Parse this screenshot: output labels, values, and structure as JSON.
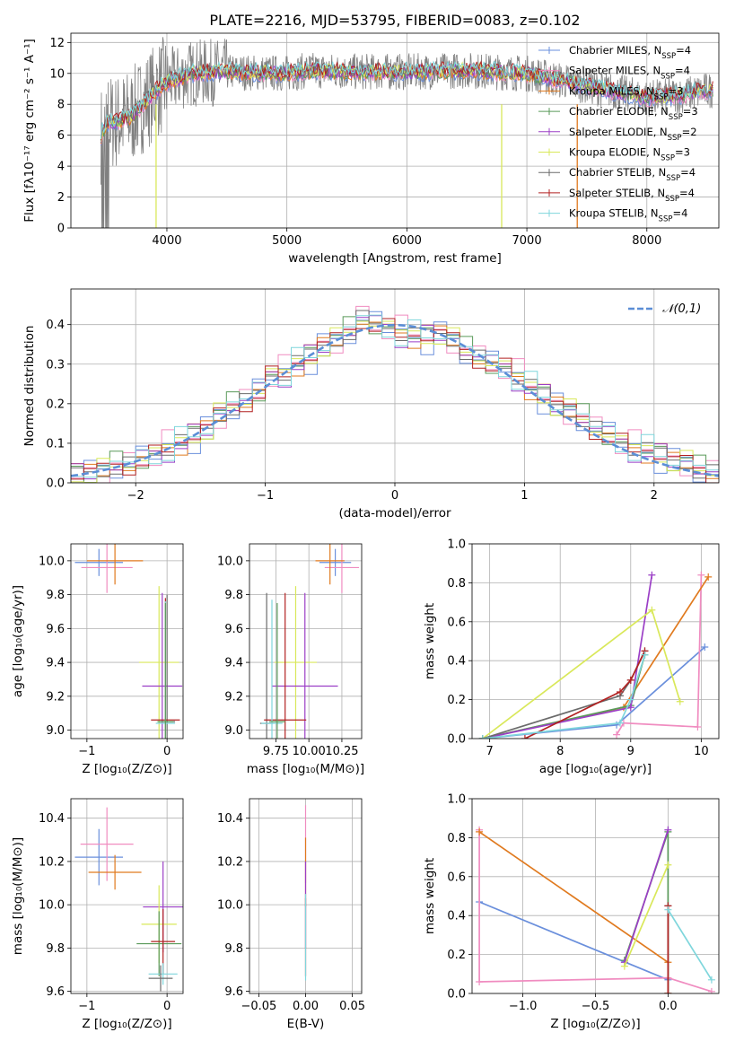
{
  "figure_title": "PLATE=2216, MJD=53795, FIBERID=0083, z=0.102",
  "colors": {
    "chabrier_miles": "#6a8fdc",
    "salpeter_miles": "#f08cc0",
    "kroupa_miles": "#e07a1f",
    "chabrier_elodie": "#5a9a5a",
    "salpeter_elodie": "#9b3fc6",
    "kroupa_elodie": "#d9e85a",
    "chabrier_stelib": "#6b6b6b",
    "salpeter_stelib": "#b22222",
    "kroupa_stelib": "#7fd6dc"
  },
  "chart_data": [
    {
      "id": "spectrum",
      "type": "line",
      "xlabel": "wavelength [Angstrom, rest frame]",
      "ylabel": "Flux [fλ10⁻¹⁷ erg cm⁻² s⁻¹ A⁻¹]",
      "xlim": [
        3200,
        8600
      ],
      "ylim": [
        0,
        12.6
      ],
      "xticks": [
        4000,
        5000,
        6000,
        7000,
        8000
      ],
      "yticks": [
        0,
        2,
        4,
        6,
        8,
        10,
        12
      ],
      "grid": true,
      "legend_position": "top-right",
      "legend": [
        {
          "label": "Chabrier MILES, N",
          "sub": "SSP",
          "value": "=4",
          "color_key": "chabrier_miles"
        },
        {
          "label": "Salpeter MILES, N",
          "sub": "SSP",
          "value": "=4",
          "color_key": "salpeter_miles"
        },
        {
          "label": "Kroupa MILES, N",
          "sub": "SSP",
          "value": "=3",
          "color_key": "kroupa_miles"
        },
        {
          "label": "Chabrier ELODIE, N",
          "sub": "SSP",
          "value": "=3",
          "color_key": "chabrier_elodie"
        },
        {
          "label": "Salpeter ELODIE, N",
          "sub": "SSP",
          "value": "=2",
          "color_key": "salpeter_elodie"
        },
        {
          "label": "Kroupa ELODIE, N",
          "sub": "SSP",
          "value": "=3",
          "color_key": "kroupa_elodie"
        },
        {
          "label": "Chabrier STELIB, N",
          "sub": "SSP",
          "value": "=4",
          "color_key": "chabrier_stelib"
        },
        {
          "label": "Salpeter STELIB, N",
          "sub": "SSP",
          "value": "=4",
          "color_key": "salpeter_stelib"
        },
        {
          "label": "Kroupa STELIB, N",
          "sub": "SSP",
          "value": "=4",
          "color_key": "kroupa_stelib"
        }
      ],
      "observed_envelope": [
        [
          3450,
          6.0
        ],
        [
          3500,
          6.8
        ],
        [
          3600,
          6.9
        ],
        [
          3700,
          7.2
        ],
        [
          3800,
          8.0
        ],
        [
          3900,
          8.8
        ],
        [
          4000,
          9.4
        ],
        [
          4200,
          10.0
        ],
        [
          4500,
          10.1
        ],
        [
          5000,
          10.0
        ],
        [
          5200,
          10.2
        ],
        [
          5500,
          10.1
        ],
        [
          6000,
          10.1
        ],
        [
          6500,
          10.2
        ],
        [
          7000,
          10.0
        ],
        [
          7500,
          9.2
        ],
        [
          8000,
          8.4
        ],
        [
          8300,
          8.6
        ],
        [
          8500,
          8.9
        ]
      ]
    },
    {
      "id": "residuals",
      "type": "step",
      "xlabel": "(data-model)/error",
      "ylabel": "Normed distribution",
      "xlim": [
        -2.5,
        2.5
      ],
      "ylim": [
        0,
        0.49
      ],
      "xticks": [
        -2,
        -1,
        0,
        1,
        2
      ],
      "yticks": [
        0.0,
        0.1,
        0.2,
        0.3,
        0.4
      ],
      "legend_position": "top-right",
      "legend": [
        {
          "label": "𝒩(0,1)",
          "style": "dashed",
          "color": "#5b8ed6"
        }
      ],
      "bin_width": 0.1,
      "histogram_centers": [
        -2.45,
        -2.35,
        -2.25,
        -2.15,
        -2.05,
        -1.95,
        -1.85,
        -1.75,
        -1.65,
        -1.55,
        -1.45,
        -1.35,
        -1.25,
        -1.15,
        -1.05,
        -0.95,
        -0.85,
        -0.75,
        -0.65,
        -0.55,
        -0.45,
        -0.35,
        -0.25,
        -0.15,
        -0.05,
        0.05,
        0.15,
        0.25,
        0.35,
        0.45,
        0.55,
        0.65,
        0.75,
        0.85,
        0.95,
        1.05,
        1.15,
        1.25,
        1.35,
        1.45,
        1.55,
        1.65,
        1.75,
        1.85,
        1.95,
        2.05,
        2.15,
        2.25,
        2.35,
        2.45
      ],
      "histogram_values": [
        0.02,
        0.03,
        0.03,
        0.04,
        0.05,
        0.06,
        0.07,
        0.09,
        0.1,
        0.12,
        0.14,
        0.17,
        0.19,
        0.21,
        0.23,
        0.27,
        0.28,
        0.3,
        0.32,
        0.35,
        0.36,
        0.38,
        0.42,
        0.4,
        0.39,
        0.38,
        0.37,
        0.37,
        0.38,
        0.36,
        0.33,
        0.32,
        0.3,
        0.29,
        0.27,
        0.24,
        0.22,
        0.2,
        0.18,
        0.16,
        0.14,
        0.12,
        0.1,
        0.09,
        0.08,
        0.07,
        0.06,
        0.05,
        0.03,
        0.03
      ],
      "series_offsets": [
        -0.022,
        0.02,
        -0.012,
        0.028,
        -0.026,
        0.014,
        0.006,
        -0.018,
        0.024
      ]
    },
    {
      "id": "age_vs_Z",
      "type": "errorbar",
      "xlabel": "Z [log₁₀(Z/Z⊙)]",
      "ylabel": "age  [log₁₀(age/yr)]",
      "xlim": [
        -1.2,
        0.2
      ],
      "ylim": [
        8.95,
        10.1
      ],
      "xticks": [
        -1,
        0
      ],
      "yticks": [
        9.0,
        9.2,
        9.4,
        9.6,
        9.8,
        10.0
      ],
      "points": [
        {
          "key": "chabrier_miles",
          "x": -0.85,
          "y": 9.99,
          "xerr": 0.3,
          "yerr": 0.08
        },
        {
          "key": "salpeter_miles",
          "x": -0.75,
          "y": 9.96,
          "xerr": 0.32,
          "yerr": 0.15
        },
        {
          "key": "kroupa_miles",
          "x": -0.65,
          "y": 10.0,
          "xerr": 0.35,
          "yerr": 0.14
        },
        {
          "key": "kroupa_elodie",
          "x": -0.1,
          "y": 9.4,
          "xerr": 0.25,
          "yerr": 0.45
        },
        {
          "key": "salpeter_elodie",
          "x": -0.06,
          "y": 9.26,
          "xerr": 0.25,
          "yerr": 0.55
        },
        {
          "key": "chabrier_stelib",
          "x": 0.0,
          "y": 9.05,
          "xerr": 0.1,
          "yerr": 0.75
        },
        {
          "key": "salpeter_stelib",
          "x": -0.02,
          "y": 9.06,
          "xerr": 0.18,
          "yerr": 0.72
        },
        {
          "key": "kroupa_stelib",
          "x": -0.02,
          "y": 9.04,
          "xerr": 0.12,
          "yerr": 0.72
        },
        {
          "key": "chabrier_elodie",
          "x": -0.02,
          "y": 9.05,
          "xerr": 0.1,
          "yerr": 0.7
        }
      ]
    },
    {
      "id": "age_vs_mass",
      "type": "errorbar",
      "xlabel": "mass [log₁₀(M/M⊙)]",
      "ylabel": "",
      "xlim": [
        9.55,
        10.4
      ],
      "ylim": [
        8.95,
        10.1
      ],
      "xticks": [
        9.75,
        10.0,
        10.25
      ],
      "xtick_labels": [
        "9.75",
        "10.00",
        "10.25"
      ],
      "yticks": [
        9.0,
        9.2,
        9.4,
        9.6,
        9.8,
        10.0
      ],
      "points": [
        {
          "key": "chabrier_miles",
          "x": 10.2,
          "y": 9.99,
          "xerr": 0.12,
          "yerr": 0.08
        },
        {
          "key": "salpeter_miles",
          "x": 10.25,
          "y": 9.96,
          "xerr": 0.13,
          "yerr": 0.15
        },
        {
          "key": "kroupa_miles",
          "x": 10.16,
          "y": 10.0,
          "xerr": 0.11,
          "yerr": 0.14
        },
        {
          "key": "kroupa_elodie",
          "x": 9.9,
          "y": 9.4,
          "xerr": 0.16,
          "yerr": 0.45
        },
        {
          "key": "salpeter_elodie",
          "x": 9.97,
          "y": 9.26,
          "xerr": 0.25,
          "yerr": 0.55
        },
        {
          "key": "chabrier_stelib",
          "x": 9.68,
          "y": 9.04,
          "xerr": 0.05,
          "yerr": 0.77
        },
        {
          "key": "salpeter_stelib",
          "x": 9.82,
          "y": 9.06,
          "xerr": 0.16,
          "yerr": 0.75
        },
        {
          "key": "kroupa_stelib",
          "x": 9.72,
          "y": 9.04,
          "xerr": 0.08,
          "yerr": 0.73
        },
        {
          "key": "chabrier_elodie",
          "x": 9.76,
          "y": 9.05,
          "xerr": 0.06,
          "yerr": 0.7
        }
      ]
    },
    {
      "id": "weight_vs_age",
      "type": "line",
      "xlabel": "age  [log₁₀(age/yr)]",
      "ylabel": "mass weight",
      "xlim": [
        6.75,
        10.25
      ],
      "ylim": [
        0,
        1.0
      ],
      "xticks": [
        7,
        8,
        9,
        10
      ],
      "yticks": [
        0.0,
        0.2,
        0.4,
        0.6,
        0.8,
        1.0
      ],
      "series": [
        {
          "key": "chabrier_miles",
          "x": [
            6.9,
            8.8,
            10.05
          ],
          "y": [
            0.0,
            0.07,
            0.47
          ]
        },
        {
          "key": "salpeter_miles",
          "x": [
            8.8,
            8.9,
            9.95,
            10.0
          ],
          "y": [
            0.02,
            0.08,
            0.06,
            0.84
          ]
        },
        {
          "key": "kroupa_miles",
          "x": [
            6.9,
            8.9,
            10.1
          ],
          "y": [
            0.0,
            0.16,
            0.83
          ]
        },
        {
          "key": "chabrier_elodie",
          "x": [
            6.9,
            9.0,
            9.2
          ],
          "y": [
            0.0,
            0.17,
            0.43
          ]
        },
        {
          "key": "salpeter_elodie",
          "x": [
            6.9,
            9.0,
            9.3
          ],
          "y": [
            0.0,
            0.16,
            0.84
          ]
        },
        {
          "key": "kroupa_elodie",
          "x": [
            6.9,
            9.3,
            9.7
          ],
          "y": [
            0.0,
            0.66,
            0.19
          ]
        },
        {
          "key": "chabrier_stelib",
          "x": [
            6.9,
            8.85,
            9.0,
            9.2
          ],
          "y": [
            0.0,
            0.22,
            0.3,
            0.45
          ]
        },
        {
          "key": "salpeter_stelib",
          "x": [
            7.5,
            8.85,
            9.0,
            9.2
          ],
          "y": [
            0.0,
            0.24,
            0.3,
            0.45
          ]
        },
        {
          "key": "kroupa_stelib",
          "x": [
            6.9,
            8.85,
            9.0,
            9.2
          ],
          "y": [
            0.0,
            0.08,
            0.2,
            0.43
          ]
        }
      ]
    },
    {
      "id": "mass_vs_Z",
      "type": "errorbar",
      "xlabel": "Z [log₁₀(Z/Z⊙)]",
      "ylabel": "mass [log₁₀(M/M⊙)]",
      "xlim": [
        -1.2,
        0.2
      ],
      "ylim": [
        9.59,
        10.49
      ],
      "xticks": [
        -1,
        0
      ],
      "yticks": [
        9.6,
        9.8,
        10.0,
        10.2,
        10.4
      ],
      "points": [
        {
          "key": "chabrier_miles",
          "x": -0.85,
          "y": 10.22,
          "xerr": 0.3,
          "yerr": 0.13
        },
        {
          "key": "salpeter_miles",
          "x": -0.75,
          "y": 10.28,
          "xerr": 0.33,
          "yerr": 0.17
        },
        {
          "key": "kroupa_miles",
          "x": -0.65,
          "y": 10.15,
          "xerr": 0.33,
          "yerr": 0.08
        },
        {
          "key": "salpeter_elodie",
          "x": -0.05,
          "y": 9.99,
          "xerr": 0.25,
          "yerr": 0.21
        },
        {
          "key": "kroupa_elodie",
          "x": -0.1,
          "y": 9.91,
          "xerr": 0.22,
          "yerr": 0.18
        },
        {
          "key": "chabrier_elodie",
          "x": -0.1,
          "y": 9.82,
          "xerr": 0.28,
          "yerr": 0.15
        },
        {
          "key": "salpeter_stelib",
          "x": -0.05,
          "y": 9.83,
          "xerr": 0.15,
          "yerr": 0.15
        },
        {
          "key": "kroupa_stelib",
          "x": -0.05,
          "y": 9.68,
          "xerr": 0.18,
          "yerr": 0.05
        },
        {
          "key": "chabrier_stelib",
          "x": -0.08,
          "y": 9.66,
          "xerr": 0.15,
          "yerr": 0.06
        }
      ]
    },
    {
      "id": "mass_vs_ebv",
      "type": "errorbar",
      "xlabel": "E(B-V)",
      "ylabel": "",
      "xlim": [
        -0.06,
        0.06
      ],
      "ylim": [
        9.59,
        10.49
      ],
      "xticks": [
        -0.05,
        0.0,
        0.05
      ],
      "xtick_labels": [
        "−0.05",
        "0.00",
        "0.05"
      ],
      "yticks": [
        9.6,
        9.8,
        10.0,
        10.2,
        10.4
      ],
      "points": [
        {
          "key": "salpeter_miles",
          "x": 0.0,
          "y": 10.28,
          "xerr": 0,
          "yerr": 0.18
        },
        {
          "key": "kroupa_miles",
          "x": 0.0,
          "y": 10.15,
          "xerr": 0,
          "yerr": 0.16
        },
        {
          "key": "salpeter_elodie",
          "x": 0.0,
          "y": 10.0,
          "xerr": 0,
          "yerr": 0.2
        },
        {
          "key": "salpeter_stelib",
          "x": 0.0,
          "y": 9.85,
          "xerr": 0,
          "yerr": 0.18
        },
        {
          "key": "kroupa_stelib",
          "x": 0.0,
          "y": 9.85,
          "xerr": 0,
          "yerr": 0.2
        }
      ]
    },
    {
      "id": "weight_vs_Z",
      "type": "line",
      "xlabel": "Z [log₁₀(Z/Z⊙)]",
      "ylabel": "mass weight",
      "xlim": [
        -1.35,
        0.35
      ],
      "ylim": [
        0,
        1.0
      ],
      "xticks": [
        -1.0,
        -0.5,
        0.0
      ],
      "xtick_labels": [
        "−1.0",
        "−0.5",
        "0.0"
      ],
      "yticks": [
        0.0,
        0.2,
        0.4,
        0.6,
        0.8,
        1.0
      ],
      "series": [
        {
          "key": "chabrier_miles",
          "x": [
            -1.3,
            0.0
          ],
          "y": [
            0.47,
            0.07
          ]
        },
        {
          "key": "salpeter_miles",
          "x": [
            -1.3,
            -1.3,
            0.0,
            0.3
          ],
          "y": [
            0.84,
            0.06,
            0.08,
            0.01
          ]
        },
        {
          "key": "kroupa_miles",
          "x": [
            -1.3,
            0.0,
            0.0
          ],
          "y": [
            0.83,
            0.16,
            0.0
          ]
        },
        {
          "key": "chabrier_elodie",
          "x": [
            -0.3,
            0.0,
            0.0
          ],
          "y": [
            0.17,
            0.83,
            0.0
          ]
        },
        {
          "key": "salpeter_elodie",
          "x": [
            -0.3,
            0.0
          ],
          "y": [
            0.16,
            0.84
          ]
        },
        {
          "key": "kroupa_elodie",
          "x": [
            -0.3,
            0.0
          ],
          "y": [
            0.14,
            0.66
          ]
        },
        {
          "key": "chabrier_stelib",
          "x": [
            0.0,
            0.0
          ],
          "y": [
            0.0,
            0.45
          ]
        },
        {
          "key": "salpeter_stelib",
          "x": [
            0.0,
            0.0
          ],
          "y": [
            0.0,
            0.45
          ]
        },
        {
          "key": "kroupa_stelib",
          "x": [
            0.0,
            0.3
          ],
          "y": [
            0.43,
            0.07
          ]
        }
      ]
    }
  ]
}
